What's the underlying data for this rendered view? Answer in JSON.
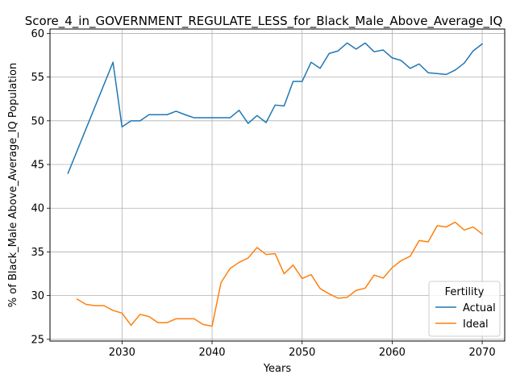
{
  "chart_data": {
    "type": "line",
    "title": "Score_4_in_GOVERNMENT_REGULATE_LESS_for_Black_Male_Above_Average_IQ",
    "xlabel": "Years",
    "ylabel": "% of Black_Male Above_Average_IQ Population",
    "xlim": [
      2022,
      2072.5
    ],
    "ylim": [
      24.8,
      60.5
    ],
    "xticks": [
      2030,
      2040,
      2050,
      2060,
      2070
    ],
    "yticks": [
      25,
      30,
      35,
      40,
      45,
      50,
      55,
      60
    ],
    "grid": true,
    "legend": {
      "title": "Fertility",
      "placement": "lower-right"
    },
    "series": [
      {
        "name": "Actual",
        "color": "#1f77b4",
        "x": [
          2024,
          2029,
          2030,
          2031,
          2032,
          2033,
          2034,
          2035,
          2036,
          2037,
          2038,
          2039,
          2040,
          2041,
          2042,
          2043,
          2044,
          2045,
          2046,
          2047,
          2048,
          2049,
          2050,
          2051,
          2052,
          2053,
          2054,
          2055,
          2056,
          2057,
          2058,
          2059,
          2060,
          2061,
          2062,
          2063,
          2064,
          2065,
          2066,
          2067,
          2068,
          2069,
          2070
        ],
        "values": [
          44.0,
          56.7,
          49.3,
          50.0,
          50.0,
          50.7,
          50.7,
          50.7,
          51.1,
          50.7,
          50.35,
          50.35,
          50.35,
          50.35,
          50.35,
          51.2,
          49.7,
          50.6,
          49.8,
          51.8,
          51.7,
          54.5,
          54.5,
          56.7,
          56.0,
          57.7,
          58.0,
          58.9,
          58.2,
          58.9,
          57.9,
          58.1,
          57.2,
          56.9,
          56.0,
          56.5,
          55.5,
          55.4,
          55.3,
          55.8,
          56.6,
          58.0,
          58.8
        ]
      },
      {
        "name": "Ideal",
        "color": "#ff7f0e",
        "x": [
          2025,
          2026,
          2027,
          2028,
          2029,
          2030,
          2031,
          2032,
          2033,
          2034,
          2035,
          2036,
          2037,
          2038,
          2039,
          2040,
          2041,
          2042,
          2043,
          2044,
          2045,
          2046,
          2047,
          2048,
          2049,
          2050,
          2051,
          2052,
          2053,
          2054,
          2055,
          2056,
          2057,
          2058,
          2059,
          2060,
          2061,
          2062,
          2063,
          2064,
          2065,
          2066,
          2067,
          2068,
          2069,
          2070
        ],
        "values": [
          29.6,
          29.0,
          28.85,
          28.85,
          28.3,
          28.0,
          26.6,
          27.85,
          27.6,
          26.9,
          26.9,
          27.35,
          27.35,
          27.35,
          26.7,
          26.5,
          31.5,
          33.1,
          33.8,
          34.3,
          35.5,
          34.7,
          34.8,
          32.5,
          33.5,
          31.95,
          32.4,
          30.8,
          30.2,
          29.7,
          29.8,
          30.6,
          30.85,
          32.35,
          32.0,
          33.2,
          34.0,
          34.5,
          36.3,
          36.15,
          38.0,
          37.85,
          38.4,
          37.5,
          37.85,
          37.05
        ]
      }
    ]
  }
}
